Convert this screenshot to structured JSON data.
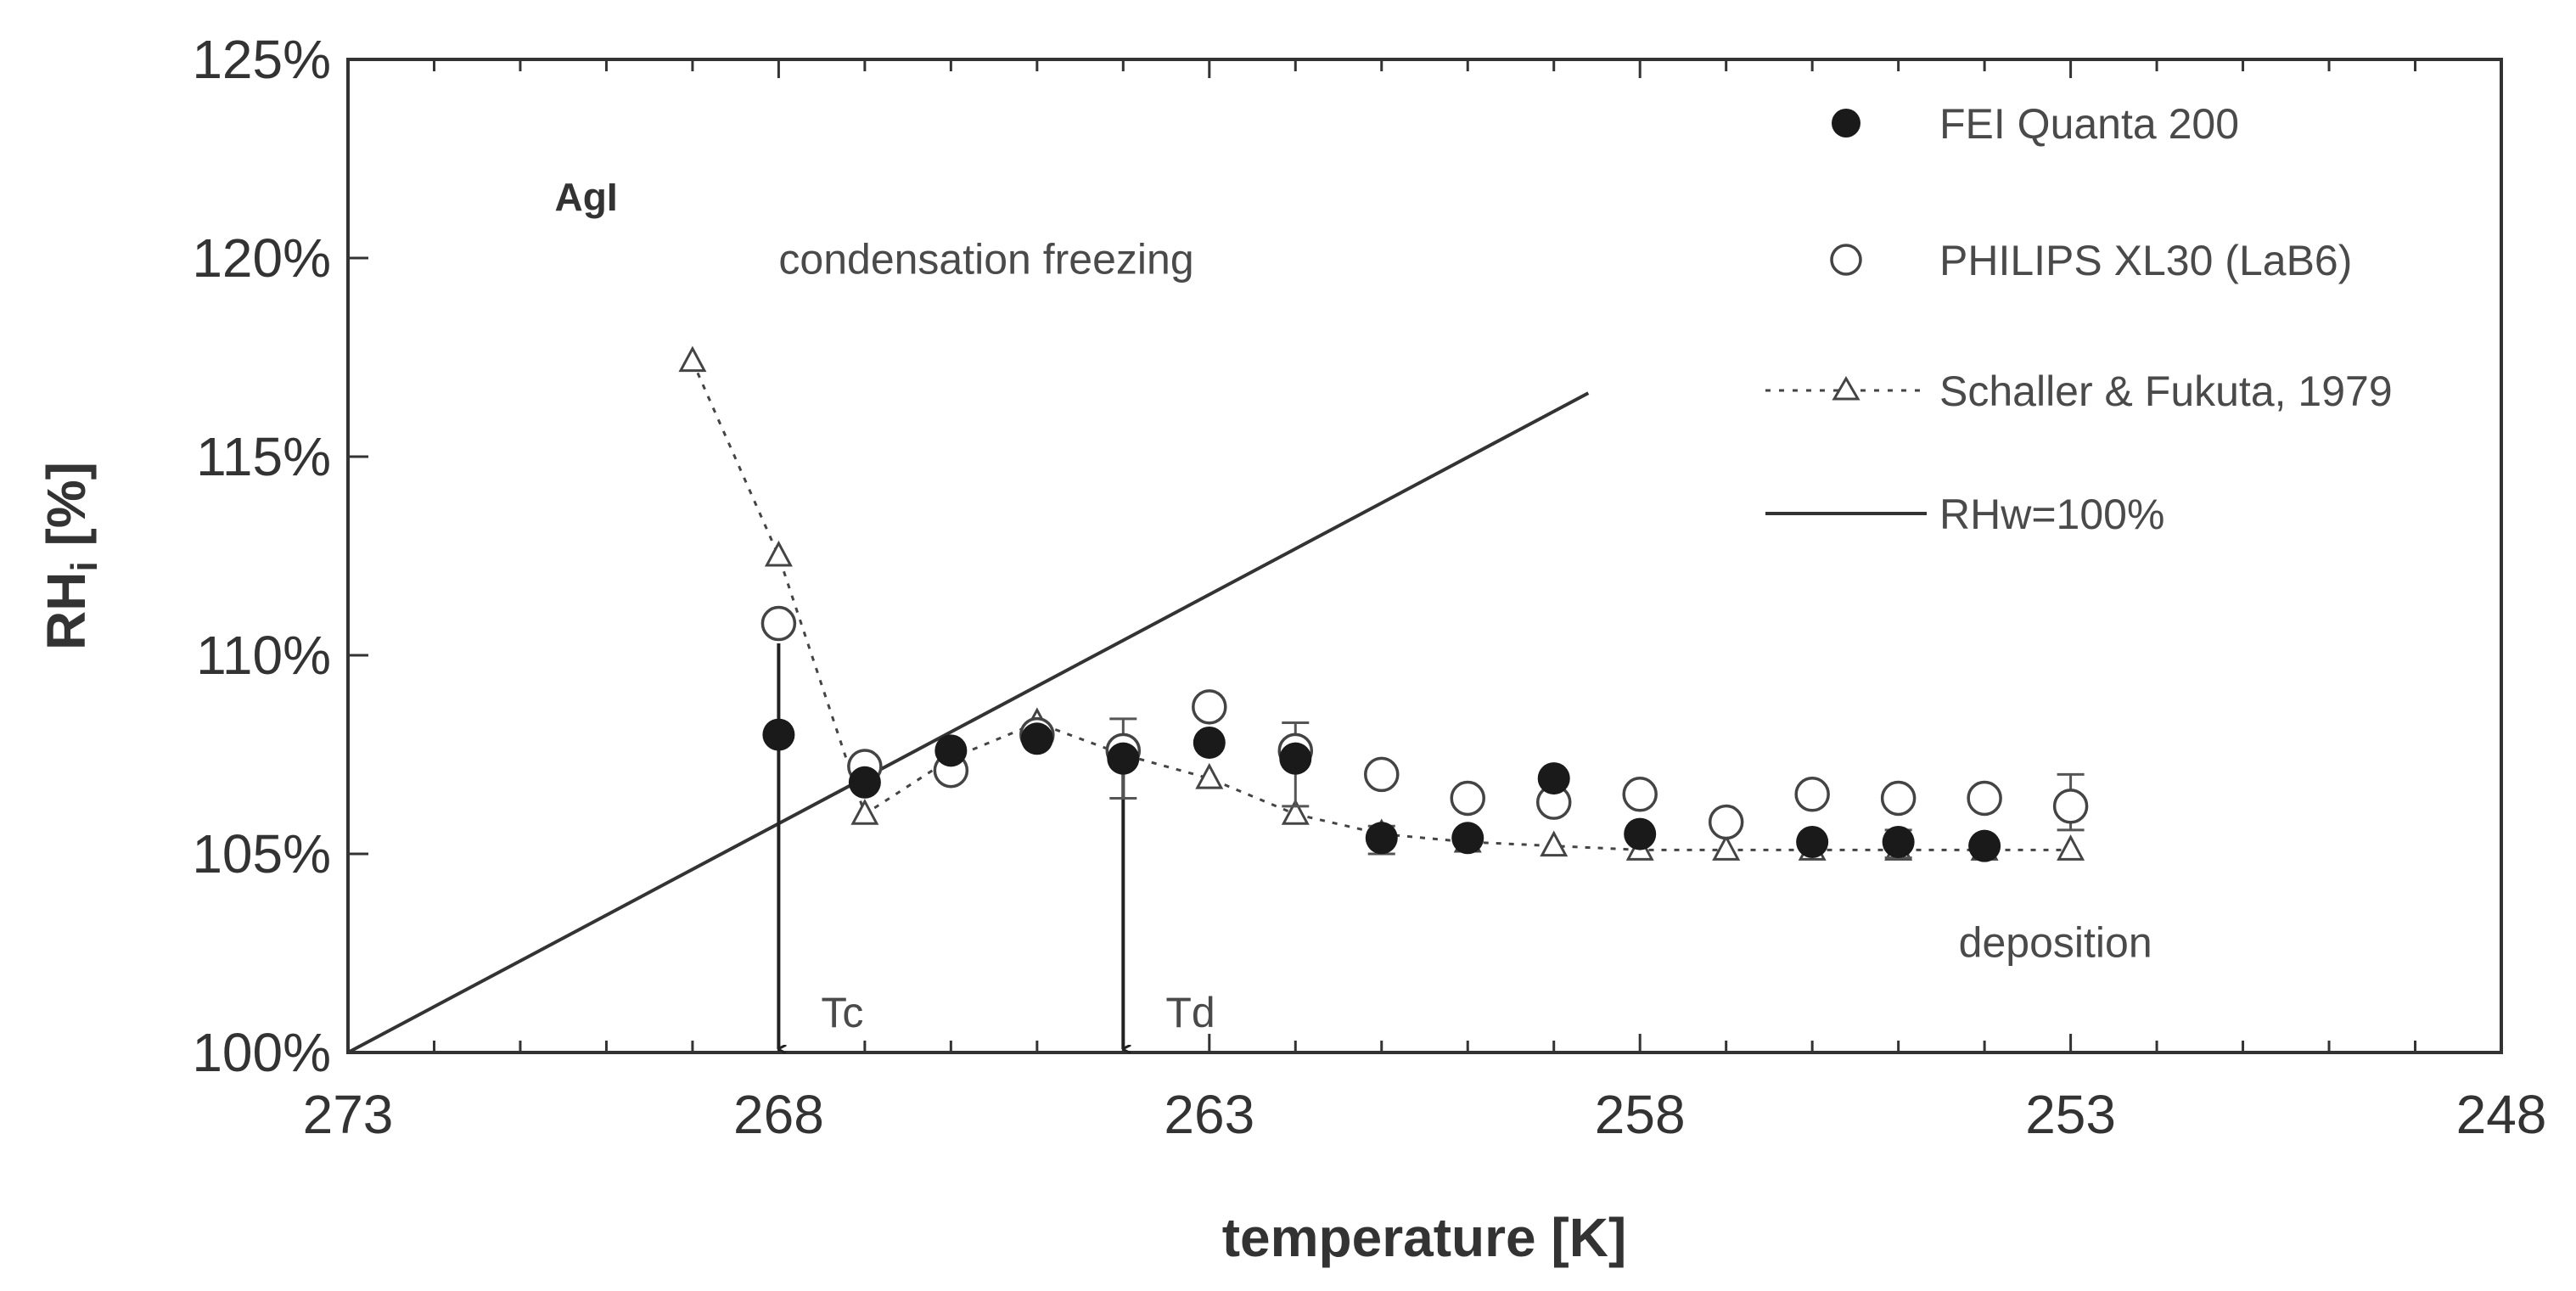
{
  "chart_data": {
    "type": "scatter",
    "title": "",
    "xlabel": "temperature [K]",
    "ylabel_main": "RH",
    "ylabel_sub": "i",
    "ylabel_suffix": " [%]",
    "xlim": [
      273,
      248
    ],
    "ylim": [
      100,
      125
    ],
    "xticks": [
      273,
      268,
      263,
      258,
      253,
      248
    ],
    "yticks": [
      100,
      105,
      110,
      115,
      120,
      125
    ],
    "ytick_labels": [
      "100%",
      "105%",
      "110%",
      "115%",
      "120%",
      "125%"
    ],
    "series": [
      {
        "name": "FEI Quanta 200",
        "marker": "filled-circle",
        "points": [
          {
            "x": 268,
            "y": 108.0
          },
          {
            "x": 267,
            "y": 106.8
          },
          {
            "x": 266,
            "y": 107.6
          },
          {
            "x": 265,
            "y": 107.9
          },
          {
            "x": 264,
            "y": 107.4
          },
          {
            "x": 263,
            "y": 107.8
          },
          {
            "x": 262,
            "y": 107.4
          },
          {
            "x": 261,
            "y": 105.4
          },
          {
            "x": 260,
            "y": 105.4
          },
          {
            "x": 259,
            "y": 106.9
          },
          {
            "x": 258,
            "y": 105.5
          },
          {
            "x": 256,
            "y": 105.3
          },
          {
            "x": 255,
            "y": 105.3
          },
          {
            "x": 254,
            "y": 105.2
          }
        ]
      },
      {
        "name": "PHILIPS XL30 (LaB6)",
        "marker": "open-circle",
        "points": [
          {
            "x": 268,
            "y": 110.8
          },
          {
            "x": 267,
            "y": 107.2
          },
          {
            "x": 266,
            "y": 107.1
          },
          {
            "x": 265,
            "y": 108.0
          },
          {
            "x": 264,
            "y": 107.6
          },
          {
            "x": 263,
            "y": 108.7
          },
          {
            "x": 262,
            "y": 107.6
          },
          {
            "x": 261,
            "y": 107.0
          },
          {
            "x": 260,
            "y": 106.4
          },
          {
            "x": 259,
            "y": 106.3
          },
          {
            "x": 258,
            "y": 106.5
          },
          {
            "x": 257,
            "y": 105.8
          },
          {
            "x": 256,
            "y": 106.5
          },
          {
            "x": 255,
            "y": 106.4
          },
          {
            "x": 254,
            "y": 106.4
          },
          {
            "x": 253,
            "y": 106.2
          }
        ]
      },
      {
        "name": "Schaller & Fukuta, 1979",
        "marker": "open-triangle",
        "line": "dotted",
        "points": [
          {
            "x": 269,
            "y": 117.4
          },
          {
            "x": 268,
            "y": 112.5
          },
          {
            "x": 267,
            "y": 106.0
          },
          {
            "x": 266,
            "y": 107.4
          },
          {
            "x": 265,
            "y": 108.3
          },
          {
            "x": 264,
            "y": 107.5
          },
          {
            "x": 263,
            "y": 106.9
          },
          {
            "x": 262,
            "y": 106.0
          },
          {
            "x": 261,
            "y": 105.5
          },
          {
            "x": 260,
            "y": 105.3
          },
          {
            "x": 259,
            "y": 105.2
          },
          {
            "x": 258,
            "y": 105.1
          },
          {
            "x": 257,
            "y": 105.1
          },
          {
            "x": 256,
            "y": 105.1
          },
          {
            "x": 255,
            "y": 105.1
          },
          {
            "x": 254,
            "y": 105.1
          },
          {
            "x": 253,
            "y": 105.1
          }
        ]
      },
      {
        "name": "RHw=100%",
        "marker": "none",
        "line": "solid",
        "points": [
          {
            "x": 273,
            "y": 100.0
          },
          {
            "x": 258.6,
            "y": 116.6
          }
        ]
      }
    ],
    "error_bars": [
      {
        "x": 264,
        "low": 106.4,
        "high": 108.4
      },
      {
        "x": 262,
        "low": 106.2,
        "high": 108.3
      },
      {
        "x": 261,
        "low": 105.0,
        "high": 105.7
      },
      {
        "x": 255,
        "low": 104.9,
        "high": 105.6
      },
      {
        "x": 253,
        "low": 105.6,
        "high": 107.0
      }
    ],
    "arrows": [
      {
        "label": "Tc",
        "x": 268,
        "from_y": 110.3,
        "to_y": 100
      },
      {
        "label": "Td",
        "x": 264,
        "from_y": 107.2,
        "to_y": 100
      }
    ],
    "annotations": [
      {
        "text": "AgI",
        "x": 270.6,
        "y": 121.2,
        "style": "bold"
      },
      {
        "text": "condensation freezing",
        "x": 268,
        "y": 119.6,
        "style": "normal"
      },
      {
        "text": "deposition",
        "x": 254.3,
        "y": 102.4,
        "style": "normal"
      }
    ],
    "legend_position": "top-right"
  }
}
